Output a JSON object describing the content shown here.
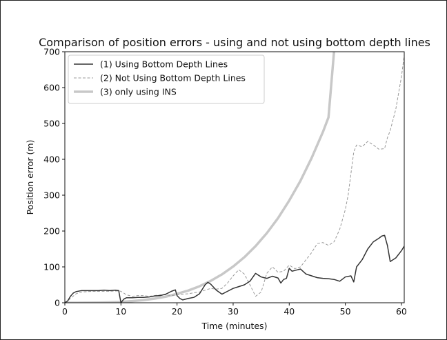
{
  "chart_data": {
    "type": "line",
    "title": "Comparison of position errors - using and not using bottom depth lines",
    "xlabel": "Time (minutes)",
    "ylabel": "Position error (m)",
    "xlim": [
      0,
      60.5
    ],
    "ylim": [
      0,
      700
    ],
    "xticks": [
      0,
      10,
      20,
      30,
      40,
      50,
      60
    ],
    "yticks": [
      0,
      100,
      200,
      300,
      400,
      500,
      600,
      700
    ],
    "grid": false,
    "legend_position": "upper-left",
    "series": [
      {
        "name": "(1) Using Bottom Depth Lines",
        "color": "#333333",
        "style": "solid",
        "x": [
          0,
          0.5,
          1,
          1.5,
          2,
          3,
          4,
          5,
          6,
          7,
          8,
          9,
          9.6,
          10,
          10.5,
          11,
          12,
          13,
          14,
          15,
          16,
          17,
          18,
          19,
          19.7,
          20,
          20.5,
          21,
          22,
          23,
          24,
          25,
          25.5,
          26,
          27,
          28,
          29,
          30,
          31,
          32,
          33,
          34,
          35,
          36,
          37,
          38,
          38.5,
          39,
          39.5,
          40,
          40.5,
          41,
          42,
          43,
          44,
          45,
          46,
          47,
          48,
          49,
          50,
          51,
          51.5,
          52,
          53,
          54,
          55,
          56,
          56.5,
          57,
          57.5,
          58,
          59,
          60,
          60.5
        ],
        "y": [
          0,
          5,
          18,
          27,
          31,
          34,
          34,
          34,
          34,
          35,
          34,
          35,
          34,
          0,
          10,
          14,
          14,
          15,
          15,
          16,
          19,
          20,
          24,
          32,
          36,
          20,
          12,
          8,
          12,
          15,
          25,
          50,
          57,
          52,
          35,
          24,
          32,
          40,
          45,
          50,
          60,
          82,
          72,
          68,
          74,
          69,
          55,
          65,
          68,
          96,
          88,
          90,
          94,
          80,
          75,
          70,
          68,
          67,
          65,
          60,
          72,
          75,
          58,
          100,
          120,
          150,
          170,
          180,
          186,
          188,
          160,
          115,
          125,
          145,
          158
        ]
      },
      {
        "name": "(2) Not Using Bottom Depth Lines",
        "color": "#999999",
        "style": "dashed",
        "x": [
          0,
          0.5,
          1,
          2,
          3,
          5,
          8,
          9.6,
          10,
          11,
          12,
          13,
          14,
          15,
          16,
          17,
          18,
          19,
          20,
          21,
          22,
          23,
          24,
          25,
          26,
          27,
          28,
          29,
          30,
          31,
          32,
          33,
          34,
          35,
          36,
          37,
          38,
          39,
          40,
          41,
          42,
          43,
          44,
          45,
          46,
          47,
          48,
          49,
          50,
          50.5,
          51,
          51.5,
          52,
          53,
          54,
          55,
          56,
          57,
          57.5,
          58,
          59,
          60,
          60.5
        ],
        "y": [
          0,
          5,
          12,
          25,
          30,
          32,
          32,
          33,
          32,
          22,
          18,
          20,
          20,
          18,
          20,
          22,
          22,
          20,
          22,
          24,
          25,
          28,
          30,
          35,
          40,
          38,
          40,
          55,
          75,
          92,
          80,
          50,
          18,
          30,
          82,
          100,
          85,
          88,
          105,
          95,
          100,
          120,
          140,
          165,
          168,
          160,
          170,
          205,
          260,
          300,
          360,
          420,
          440,
          435,
          450,
          440,
          428,
          430,
          460,
          480,
          540,
          630,
          690
        ]
      },
      {
        "name": "(3) only using INS",
        "color": "#c8c8c8",
        "style": "solid-thick",
        "x": [
          0,
          2,
          4,
          6,
          8,
          10,
          12,
          14,
          16,
          18,
          20,
          22,
          24,
          26,
          28,
          30,
          32,
          34,
          36,
          38,
          40,
          42,
          44,
          46,
          47,
          48
        ],
        "y": [
          0,
          0.1,
          0.2,
          0.5,
          1.2,
          2.5,
          4.5,
          7.5,
          11.5,
          17,
          25,
          34,
          46,
          61,
          79,
          101,
          127,
          158,
          194,
          236,
          285,
          340,
          404,
          476,
          517,
          703
        ]
      }
    ]
  }
}
